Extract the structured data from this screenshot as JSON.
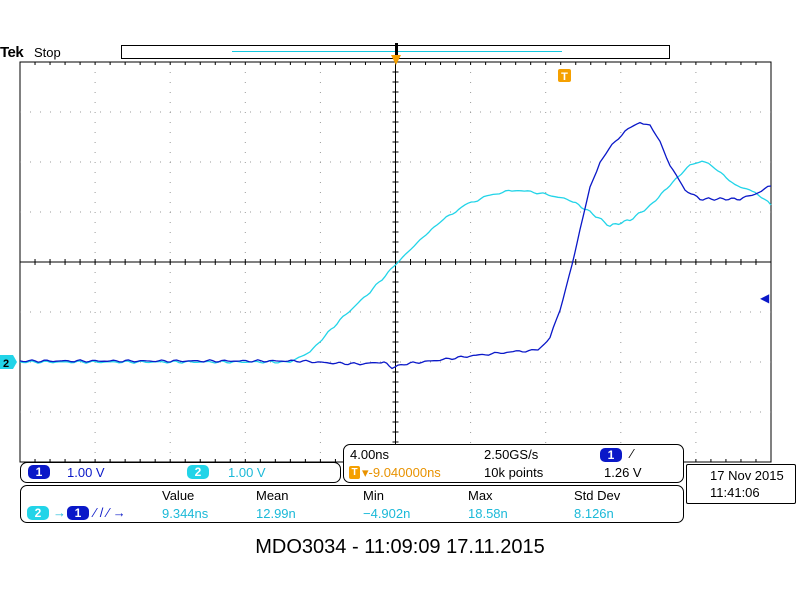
{
  "header": {
    "brand": "Tek",
    "run_status": "Stop"
  },
  "markers": {
    "trigger_glyph": "T",
    "ch2_ground": "2",
    "trigger_level_glyph": "◀"
  },
  "channels": {
    "ch1": {
      "id": "1",
      "scale": "1.00 V",
      "color": "#0a18c8"
    },
    "ch2": {
      "id": "2",
      "scale": "1.00 V",
      "color": "#22d4e8"
    }
  },
  "acquisition": {
    "timebase": "4.00ns",
    "sample_rate": "2.50GS/s",
    "trigger_position": "▾-9.040000ns",
    "record_length": "10k points",
    "trigger_source": "1",
    "trigger_slope": "⁄",
    "trigger_level": "1.26 V"
  },
  "datetime": {
    "date": "17 Nov 2015",
    "time": "11:41:06"
  },
  "measurement": {
    "source_from": "2",
    "arrow": "→",
    "source_to": "1",
    "edges": "⁄ / ⁄ →",
    "headers": [
      "Value",
      "Mean",
      "Min",
      "Max",
      "Std Dev"
    ],
    "values": [
      "9.344ns",
      "12.99n",
      "−4.902n",
      "18.58n",
      "8.126n"
    ]
  },
  "caption": "MDO3034 - 11:09:09   17.11.2015",
  "colors": {
    "ch1": "#0a18c8",
    "ch2": "#22d4e8",
    "trigger": "#f5a000",
    "record_window": "#14c8e0"
  },
  "icons": [
    "trigger-position-icon",
    "trigger-marker-icon",
    "trigger-level-icon",
    "ch2-ground-marker-icon",
    "rising-edge-icon"
  ]
}
